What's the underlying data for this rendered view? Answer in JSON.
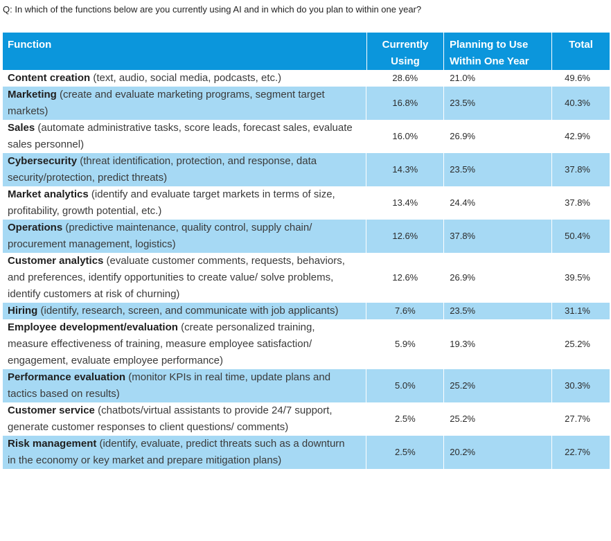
{
  "question": "Q: In which of the functions below are you currently using AI and in which do you plan to within one year?",
  "columns": {
    "function": "Function",
    "current_line1": "Currently",
    "current_line2": "Using",
    "planning_line1": "Planning to Use",
    "planning_line2": "Within One Year",
    "total": "Total"
  },
  "colors": {
    "header_bg": "#0b96dc",
    "alt_row_bg": "#a6d9f4"
  },
  "rows": [
    {
      "name": "Content creation",
      "desc": " (text, audio, social media, podcasts, etc.)",
      "current": "28.6%",
      "planning": "21.0%",
      "total": "49.6%"
    },
    {
      "name": "Marketing",
      "desc": " (create and evaluate marketing programs, segment target markets)",
      "current": "16.8%",
      "planning": "23.5%",
      "total": "40.3%"
    },
    {
      "name": "Sales",
      "desc": " (automate administrative tasks, score leads, forecast sales, evaluate sales personnel)",
      "current": "16.0%",
      "planning": "26.9%",
      "total": "42.9%"
    },
    {
      "name": "Cybersecurity",
      "desc": " (threat identification, protection, and response, data security/protection, predict threats)",
      "current": "14.3%",
      "planning": "23.5%",
      "total": "37.8%"
    },
    {
      "name": "Market analytics",
      "desc": " (identify and evaluate target markets in terms of size, profitability, growth potential, etc.)",
      "current": "13.4%",
      "planning": "24.4%",
      "total": "37.8%"
    },
    {
      "name": "Operations",
      "desc": " (predictive maintenance, quality control, supply chain/ procurement management, logistics)",
      "current": "12.6%",
      "planning": "37.8%",
      "total": "50.4%"
    },
    {
      "name": "Customer analytics",
      "desc": " (evaluate customer comments, requests, behaviors, and preferences, identify opportunities to create value/ solve problems, identify customers at risk of churning)",
      "current": "12.6%",
      "planning": "26.9%",
      "total": "39.5%"
    },
    {
      "name": "Hiring",
      "desc": " (identify, research, screen, and communicate with job applicants)",
      "current": "7.6%",
      "planning": "23.5%",
      "total": "31.1%"
    },
    {
      "name": "Employee development/evaluation",
      "desc": " (create personalized training, measure effectiveness of training, measure employee satisfaction/ engagement, evaluate employee performance)",
      "current": "5.9%",
      "planning": "19.3%",
      "total": "25.2%"
    },
    {
      "name": "Performance evaluation",
      "desc": " (monitor KPIs in real time, update plans and tactics based on results)",
      "current": "5.0%",
      "planning": "25.2%",
      "total": "30.3%"
    },
    {
      "name": "Customer service",
      "desc": " (chatbots/virtual assistants to provide 24/7 support, generate customer responses to client questions/ comments)",
      "current": "2.5%",
      "planning": "25.2%",
      "total": "27.7%"
    },
    {
      "name": "Risk management",
      "desc": " (identify, evaluate, predict threats such as a downturn in the economy or key market and prepare mitigation plans)",
      "current": "2.5%",
      "planning": "20.2%",
      "total": "22.7%"
    }
  ]
}
